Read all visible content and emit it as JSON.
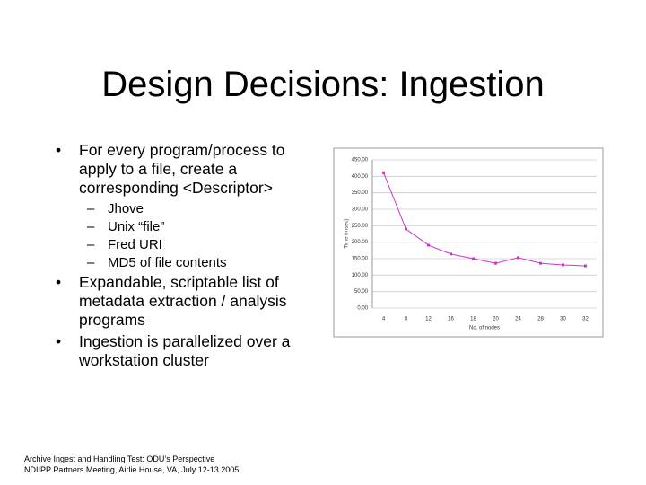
{
  "slide": {
    "title": "Design Decisions: Ingestion",
    "bullets": [
      {
        "marker": "•",
        "text": "For every program/process to apply to a file, create a corresponding <Descriptor>",
        "sub": [
          {
            "marker": "–",
            "text": "Jhove"
          },
          {
            "marker": "–",
            "text": "Unix “file”"
          },
          {
            "marker": "–",
            "text": "Fred URI"
          },
          {
            "marker": "–",
            "text": "MD5 of file contents"
          }
        ]
      },
      {
        "marker": "•",
        "text": "Expandable, scriptable list of metadata extraction / analysis programs"
      },
      {
        "marker": "•",
        "text": "Ingestion is parallelized over a workstation cluster"
      }
    ],
    "footer": [
      "Archive Ingest and Handling Test: ODU’s Perspective",
      "NDIIPP Partners Meeting, Airlie House, VA, July 12-13 2005"
    ]
  },
  "chart_data": {
    "type": "line",
    "x_label": "No. of nodes",
    "y_label": "Time (msec)",
    "categories": [
      "4",
      "8",
      "12",
      "16",
      "18",
      "20",
      "24",
      "28",
      "30",
      "32"
    ],
    "values": [
      411,
      240,
      191,
      164,
      150,
      136,
      153,
      136,
      131,
      128
    ],
    "color": "#cc33cc",
    "ylim": [
      0,
      450
    ],
    "yticks": [
      {
        "value": 0,
        "label": "0.00"
      },
      {
        "value": 50,
        "label": "50.00"
      },
      {
        "value": 100,
        "label": "100.00"
      },
      {
        "value": 150,
        "label": "150.00"
      },
      {
        "value": 200,
        "label": "200.00"
      },
      {
        "value": 250,
        "label": "250.00"
      },
      {
        "value": 300,
        "label": "300.00"
      },
      {
        "value": 350,
        "label": "350.00"
      },
      {
        "value": 400,
        "label": "400.00"
      },
      {
        "value": 450,
        "label": "450.00"
      }
    ],
    "grid": true
  }
}
